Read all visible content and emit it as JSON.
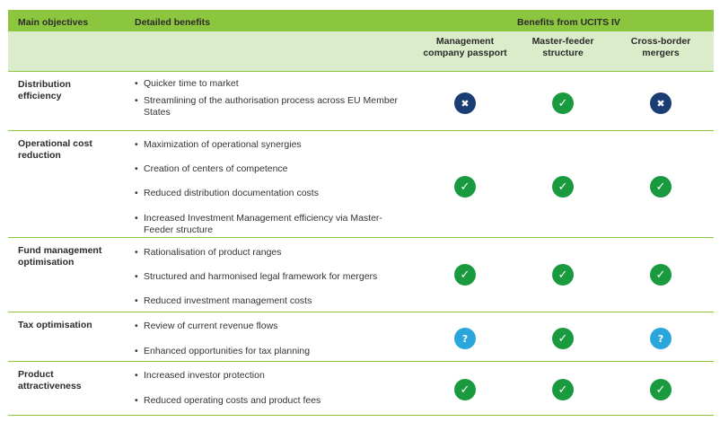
{
  "header": {
    "main_objectives": "Main objectives",
    "detailed_benefits": "Detailed benefits",
    "benefits_from": "Benefits from UCITS IV",
    "columns": [
      {
        "line1": "Management",
        "line2": "company passport"
      },
      {
        "line1": "Master-feeder",
        "line2": "structure"
      },
      {
        "line1": "Cross-border",
        "line2": "mergers"
      }
    ]
  },
  "rows": [
    {
      "objective": "Distribution efficiency",
      "benefits": [
        "Quicker time to market",
        "Streamlining of the authorisation process across EU Member States"
      ],
      "status": [
        "cross",
        "check",
        "cross"
      ]
    },
    {
      "objective": "Operational cost reduction",
      "benefits": [
        "Maximization of operational synergies",
        "Creation of centers of competence",
        "Reduced distribution documentation costs",
        "Increased Investment Management efficiency via Master-Feeder structure"
      ],
      "status": [
        "check",
        "check",
        "check"
      ]
    },
    {
      "objective": "Fund management optimisation",
      "benefits": [
        "Rationalisation of product ranges",
        "Structured and harmonised legal framework for mergers",
        "Reduced investment management costs"
      ],
      "status": [
        "check",
        "check",
        "check"
      ]
    },
    {
      "objective": "Tax optimisation",
      "benefits": [
        "Review of current revenue flows",
        "Enhanced opportunities for tax planning"
      ],
      "status": [
        "question",
        "check",
        "question"
      ]
    },
    {
      "objective": "Product attractiveness",
      "benefits": [
        "Increased investor protection",
        "Reduced operating costs and product fees"
      ],
      "status": [
        "check",
        "check",
        "check"
      ]
    }
  ],
  "icons": {
    "check": {
      "name": "check-icon",
      "glyph": "✓",
      "color": "#1a9a3e"
    },
    "cross": {
      "name": "cross-icon",
      "glyph": "✖",
      "color": "#1a3e74"
    },
    "question": {
      "name": "question-icon",
      "glyph": "?",
      "color": "#2aa6dc"
    }
  },
  "colors": {
    "header_green": "#8cc63f",
    "subheader_green": "#dbeccb",
    "rule": "#8cc63f"
  }
}
